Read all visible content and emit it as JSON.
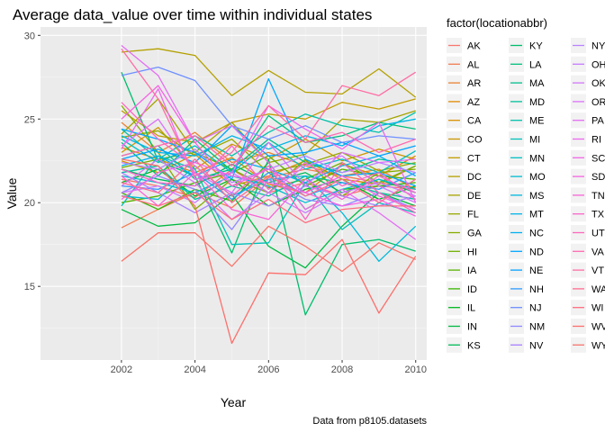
{
  "chart_data": {
    "type": "line",
    "title": "Average data_value over time within individual states",
    "xlabel": "Year",
    "ylabel": "Value",
    "caption": "Data from p8105.datasets",
    "legend_title": "factor(locationabbr)",
    "legend_position": "right",
    "grid": true,
    "xlim": [
      1999.8,
      2010.3
    ],
    "ylim": [
      10.6,
      30.5
    ],
    "x_ticks": [
      2002,
      2004,
      2006,
      2008,
      2010
    ],
    "y_ticks": [
      15,
      20,
      25,
      30
    ],
    "x": [
      2002,
      2003,
      2004,
      2005,
      2006,
      2007,
      2008,
      2009,
      2010
    ],
    "series": [
      {
        "name": "AK",
        "color": "#F8766D",
        "values": [
          21.4,
          21.0,
          20.3,
          22.0,
          20.6,
          21.2,
          20.4,
          21.0,
          20.8
        ]
      },
      {
        "name": "AL",
        "color": "#F27D52",
        "values": [
          18.5,
          19.6,
          20.6,
          19.7,
          21.5,
          22.0,
          21.6,
          21.2,
          20.9
        ]
      },
      {
        "name": "AR",
        "color": "#EA8331",
        "values": [
          24.8,
          23.0,
          24.2,
          22.4,
          23.0,
          22.2,
          21.6,
          22.0,
          20.8
        ]
      },
      {
        "name": "AZ",
        "color": "#E18A00",
        "values": [
          23.3,
          22.6,
          21.8,
          22.7,
          21.1,
          20.6,
          22.3,
          21.6,
          22.8
        ]
      },
      {
        "name": "CA",
        "color": "#D89000",
        "values": [
          22.5,
          21.8,
          22.9,
          21.0,
          21.6,
          22.5,
          21.4,
          21.1,
          22.2
        ]
      },
      {
        "name": "CO",
        "color": "#CD9600",
        "values": [
          23.0,
          24.5,
          22.0,
          23.5,
          22.6,
          23.8,
          22.5,
          23.2,
          22.6
        ]
      },
      {
        "name": "CT",
        "color": "#C19C00",
        "values": [
          25.5,
          24.0,
          23.6,
          24.8,
          25.3,
          25.0,
          26.0,
          25.6,
          26.2
        ]
      },
      {
        "name": "DC",
        "color": "#B4A000",
        "values": [
          29.0,
          29.2,
          28.8,
          26.4,
          27.9,
          26.6,
          26.5,
          28.0,
          26.3
        ]
      },
      {
        "name": "DE",
        "color": "#A6A400",
        "values": [
          24.1,
          26.2,
          23.0,
          24.8,
          22.4,
          22.9,
          25.0,
          24.8,
          25.5
        ]
      },
      {
        "name": "FL",
        "color": "#97A800",
        "values": [
          23.9,
          24.3,
          22.8,
          23.8,
          21.8,
          22.3,
          23.0,
          21.9,
          22.4
        ]
      },
      {
        "name": "GA",
        "color": "#86AC00",
        "values": [
          25.8,
          23.0,
          19.6,
          21.4,
          20.6,
          22.6,
          20.4,
          21.8,
          22.0
        ]
      },
      {
        "name": "HI",
        "color": "#72B000",
        "values": [
          22.1,
          22.6,
          23.0,
          22.0,
          20.9,
          21.4,
          22.4,
          21.2,
          22.2
        ]
      },
      {
        "name": "IA",
        "color": "#5BB300",
        "values": [
          20.0,
          20.4,
          21.2,
          21.8,
          22.8,
          21.0,
          22.0,
          21.6,
          21.4
        ]
      },
      {
        "name": "ID",
        "color": "#39B600",
        "values": [
          20.6,
          19.6,
          20.8,
          20.1,
          22.4,
          19.6,
          20.8,
          21.0,
          21.2
        ]
      },
      {
        "name": "IL",
        "color": "#00B81F",
        "values": [
          21.2,
          22.0,
          20.4,
          21.4,
          19.8,
          20.8,
          21.4,
          20.2,
          21.0
        ]
      },
      {
        "name": "IN",
        "color": "#00BA42",
        "values": [
          19.6,
          18.6,
          18.8,
          20.5,
          17.4,
          16.1,
          18.6,
          20.6,
          19.8
        ]
      },
      {
        "name": "KS",
        "color": "#00BC59",
        "values": [
          22.0,
          21.4,
          21.0,
          22.3,
          21.2,
          21.8,
          20.6,
          21.4,
          20.6
        ]
      },
      {
        "name": "KY",
        "color": "#00BE6C",
        "values": [
          27.8,
          22.5,
          21.6,
          17.0,
          22.6,
          13.3,
          17.5,
          17.8,
          17.1
        ]
      },
      {
        "name": "LA",
        "color": "#00BF7D",
        "values": [
          23.6,
          21.6,
          23.8,
          21.9,
          25.2,
          23.6,
          24.0,
          24.8,
          24.4
        ]
      },
      {
        "name": "MA",
        "color": "#00C08D",
        "values": [
          22.8,
          23.4,
          21.4,
          22.0,
          23.8,
          22.4,
          21.8,
          22.6,
          22.3
        ]
      },
      {
        "name": "MD",
        "color": "#00C19C",
        "values": [
          21.8,
          22.2,
          20.2,
          21.0,
          20.4,
          21.6,
          21.2,
          20.6,
          20.2
        ]
      },
      {
        "name": "ME",
        "color": "#00C1AA",
        "values": [
          24.4,
          22.6,
          24.0,
          22.8,
          24.2,
          25.3,
          24.6,
          24.2,
          25.4
        ]
      },
      {
        "name": "MI",
        "color": "#00C0B8",
        "values": [
          19.8,
          22.8,
          22.0,
          17.5,
          17.6,
          21.2,
          18.4,
          20.0,
          19.4
        ]
      },
      {
        "name": "MN",
        "color": "#00BFC4",
        "values": [
          23.8,
          22.4,
          23.4,
          21.8,
          23.6,
          22.0,
          22.6,
          21.8,
          23.1
        ]
      },
      {
        "name": "MO",
        "color": "#00BCD1",
        "values": [
          21.6,
          21.2,
          20.6,
          21.6,
          21.0,
          20.0,
          20.8,
          21.4,
          20.8
        ]
      },
      {
        "name": "MS",
        "color": "#00B9DC",
        "values": [
          20.4,
          20.2,
          22.2,
          20.4,
          21.4,
          21.6,
          19.4,
          16.5,
          18.6
        ]
      },
      {
        "name": "MT",
        "color": "#00B5E7",
        "values": [
          24.0,
          23.0,
          22.8,
          24.0,
          23.2,
          24.0,
          23.4,
          24.6,
          25.0
        ]
      },
      {
        "name": "NC",
        "color": "#00B0F0",
        "values": [
          22.2,
          22.8,
          21.6,
          22.6,
          22.0,
          21.2,
          22.2,
          22.8,
          21.6
        ]
      },
      {
        "name": "ND",
        "color": "#00A9FF",
        "values": [
          24.4,
          23.8,
          23.0,
          21.4,
          27.4,
          22.6,
          21.6,
          21.8,
          21.0
        ]
      },
      {
        "name": "NE",
        "color": "#00A2FF",
        "values": [
          22.6,
          23.2,
          22.4,
          24.6,
          22.8,
          23.0,
          23.6,
          22.8,
          23.4
        ]
      },
      {
        "name": "NH",
        "color": "#2C9AFF",
        "values": [
          21.0,
          20.8,
          21.8,
          20.2,
          21.8,
          20.4,
          21.2,
          20.8,
          21.8
        ]
      },
      {
        "name": "NJ",
        "color": "#6E8FFF",
        "values": [
          27.6,
          28.1,
          27.3,
          24.6,
          23.8,
          24.6,
          23.6,
          24.0,
          23.8
        ]
      },
      {
        "name": "NM",
        "color": "#8F88FF",
        "values": [
          20.6,
          21.6,
          20.8,
          18.4,
          21.4,
          20.2,
          19.8,
          20.6,
          19.6
        ]
      },
      {
        "name": "NV",
        "color": "#A781FF",
        "values": [
          21.8,
          20.6,
          19.4,
          20.6,
          19.8,
          21.0,
          20.4,
          19.8,
          20.4
        ]
      },
      {
        "name": "NY",
        "color": "#B983FF",
        "values": [
          22.4,
          22.0,
          23.2,
          21.2,
          22.0,
          22.8,
          21.8,
          22.4,
          21.8
        ]
      },
      {
        "name": "OH",
        "color": "#C77CFF",
        "values": [
          20.6,
          21.0,
          20.0,
          21.8,
          20.6,
          19.4,
          20.6,
          21.2,
          20.4
        ]
      },
      {
        "name": "OK",
        "color": "#D277FA",
        "values": [
          21.0,
          22.6,
          21.2,
          19.0,
          20.6,
          22.2,
          22.8,
          21.0,
          20.0
        ]
      },
      {
        "name": "OR",
        "color": "#DC71FA",
        "values": [
          23.4,
          25.0,
          21.8,
          20.6,
          23.6,
          21.0,
          23.0,
          22.4,
          22.6
        ]
      },
      {
        "name": "PA",
        "color": "#E46EF3",
        "values": [
          29.4,
          27.6,
          23.6,
          24.6,
          22.4,
          19.6,
          20.8,
          19.4,
          17.8
        ]
      },
      {
        "name": "RI",
        "color": "#EC69EF",
        "values": [
          23.2,
          26.8,
          21.4,
          21.8,
          25.8,
          24.4,
          23.2,
          24.8,
          20.0
        ]
      },
      {
        "name": "SC",
        "color": "#F166E8",
        "values": [
          20.2,
          21.8,
          22.4,
          21.6,
          21.2,
          20.6,
          21.6,
          20.4,
          19.6
        ]
      },
      {
        "name": "SD",
        "color": "#F564E3",
        "values": [
          25.0,
          27.0,
          23.6,
          21.0,
          22.0,
          20.6,
          19.8,
          20.2,
          19.2
        ]
      },
      {
        "name": "TN",
        "color": "#F865D7",
        "values": [
          21.6,
          19.8,
          21.8,
          19.6,
          19.0,
          21.4,
          20.2,
          21.6,
          20.6
        ]
      },
      {
        "name": "TX",
        "color": "#FA65CB",
        "values": [
          22.0,
          21.2,
          21.0,
          23.4,
          20.8,
          22.4,
          21.0,
          21.8,
          20.2
        ]
      },
      {
        "name": "UT",
        "color": "#FC67BF",
        "values": [
          26.0,
          23.8,
          22.2,
          20.4,
          22.2,
          19.0,
          22.4,
          20.6,
          19.4
        ]
      },
      {
        "name": "VA",
        "color": "#FF6AB2",
        "values": [
          22.8,
          23.4,
          24.0,
          22.2,
          24.6,
          23.6,
          24.2,
          23.0,
          23.8
        ]
      },
      {
        "name": "VT",
        "color": "#FF6DA5",
        "values": [
          29.2,
          26.2,
          21.6,
          23.0,
          25.8,
          23.8,
          27.0,
          26.4,
          27.8
        ]
      },
      {
        "name": "WA",
        "color": "#FF6C91",
        "values": [
          21.2,
          20.6,
          22.6,
          20.0,
          21.6,
          20.4,
          21.4,
          20.0,
          21.4
        ]
      },
      {
        "name": "WI",
        "color": "#FF6C7F",
        "values": [
          20.4,
          19.8,
          20.6,
          19.0,
          20.2,
          18.8,
          19.6,
          19.8,
          19.8
        ]
      },
      {
        "name": "WV",
        "color": "#FD6F6C",
        "values": [
          22.6,
          22.2,
          19.8,
          11.6,
          15.8,
          15.7,
          17.8,
          13.4,
          16.8
        ]
      },
      {
        "name": "WY",
        "color": "#F8766D",
        "values": [
          16.5,
          18.2,
          18.2,
          16.2,
          18.6,
          17.4,
          15.9,
          17.6,
          16.6
        ]
      }
    ]
  }
}
